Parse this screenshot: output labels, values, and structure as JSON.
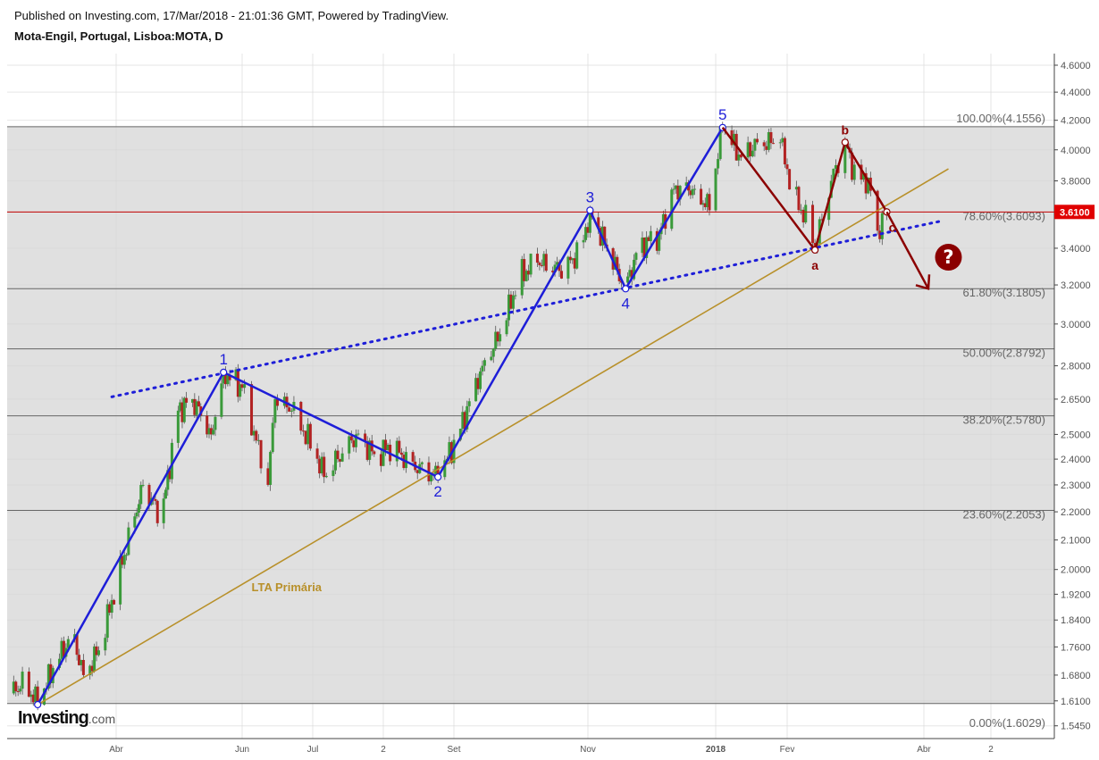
{
  "header": {
    "published": "Published on Investing.com, 17/Mar/2018 - 21:01:36 GMT, Powered by TradingView.",
    "symbol": "Mota-Engil, Portugal, Lisboa:MOTA, D"
  },
  "logo": {
    "main": "Investing",
    "suffix": ".com"
  },
  "chart_data": {
    "type": "candlestick",
    "title": "Mota-Engil, Portugal, Lisboa:MOTA, D",
    "y_scale": "log",
    "ylim": [
      1.52,
      4.7
    ],
    "y_ticks": [
      "4.6000",
      "4.4000",
      "4.2000",
      "4.0000",
      "3.8000",
      "3.4000",
      "3.2000",
      "3.0000",
      "2.8000",
      "2.6500",
      "2.5000",
      "2.4000",
      "2.3000",
      "2.2000",
      "2.1000",
      "2.0000",
      "1.9200",
      "1.8400",
      "1.7600",
      "1.6800",
      "1.6100",
      "1.5450"
    ],
    "x_ticks": [
      {
        "label": "Abr",
        "date": "2017-04-01"
      },
      {
        "label": "Jun",
        "date": "2017-06-01"
      },
      {
        "label": "Jul",
        "date": "2017-07-01"
      },
      {
        "label": "2",
        "date": "2017-08-01"
      },
      {
        "label": "Set",
        "date": "2017-09-01"
      },
      {
        "label": "Nov",
        "date": "2017-11-01"
      },
      {
        "label": "2018",
        "date": "2018-01-01"
      },
      {
        "label": "Fev",
        "date": "2018-02-01"
      },
      {
        "label": "Abr",
        "date": "2018-04-01"
      },
      {
        "label": "2",
        "date": "2018-05-01"
      }
    ],
    "last_price": {
      "value": 3.61,
      "label": "3.6100",
      "color": "#e00000"
    },
    "price_path": [
      [
        "2017-02-11",
        1.63
      ],
      [
        "2017-02-18",
        1.66
      ],
      [
        "2017-02-24",
        1.6
      ],
      [
        "2017-03-03",
        1.7
      ],
      [
        "2017-03-12",
        1.8
      ],
      [
        "2017-03-17",
        1.68
      ],
      [
        "2017-03-24",
        1.75
      ],
      [
        "2017-04-01",
        1.95
      ],
      [
        "2017-04-14",
        2.3
      ],
      [
        "2017-04-23",
        2.18
      ],
      [
        "2017-05-01",
        2.6
      ],
      [
        "2017-05-08",
        2.65
      ],
      [
        "2017-05-17",
        2.5
      ],
      [
        "2017-05-23",
        2.77
      ],
      [
        "2017-06-01",
        2.7
      ],
      [
        "2017-06-12",
        2.3
      ],
      [
        "2017-06-15",
        2.65
      ],
      [
        "2017-06-22",
        2.6
      ],
      [
        "2017-07-01",
        2.45
      ],
      [
        "2017-07-06",
        2.33
      ],
      [
        "2017-07-12",
        2.4
      ],
      [
        "2017-07-20",
        2.5
      ],
      [
        "2017-07-28",
        2.42
      ],
      [
        "2017-08-05",
        2.45
      ],
      [
        "2017-08-13",
        2.38
      ],
      [
        "2017-08-25",
        2.33
      ],
      [
        "2017-09-03",
        2.5
      ],
      [
        "2017-09-14",
        2.8
      ],
      [
        "2017-09-22",
        2.95
      ],
      [
        "2017-10-01",
        3.25
      ],
      [
        "2017-10-09",
        3.32
      ],
      [
        "2017-10-21",
        3.28
      ],
      [
        "2017-10-29",
        3.4
      ],
      [
        "2017-11-02",
        3.62
      ],
      [
        "2017-11-10",
        3.4
      ],
      [
        "2017-11-19",
        3.18
      ],
      [
        "2017-11-25",
        3.4
      ],
      [
        "2017-12-05",
        3.48
      ],
      [
        "2017-12-12",
        3.75
      ],
      [
        "2017-12-22",
        3.75
      ],
      [
        "2017-12-29",
        3.62
      ],
      [
        "2018-01-04",
        4.15
      ],
      [
        "2018-01-12",
        3.95
      ],
      [
        "2018-01-19",
        4.05
      ],
      [
        "2018-01-29",
        4.05
      ],
      [
        "2018-02-04",
        3.7
      ],
      [
        "2018-02-10",
        3.55
      ],
      [
        "2018-02-13",
        3.4
      ],
      [
        "2018-02-20",
        3.8
      ],
      [
        "2018-02-26",
        4.05
      ],
      [
        "2018-03-03",
        3.8
      ],
      [
        "2018-03-08",
        3.82
      ],
      [
        "2018-03-12",
        3.5
      ],
      [
        "2018-03-16",
        3.61
      ]
    ],
    "colors": {
      "up": "#3a9a3a",
      "down": "#b22222",
      "wave": "#1e1ed8",
      "correction": "#8b0000",
      "trendline": "#b8902a",
      "fib_band": "#e0e0e0"
    },
    "fibonacci": [
      {
        "label": "100.00%(4.1556)",
        "value": 4.1556
      },
      {
        "label": "78.60%(3.6093)",
        "value": 3.6093
      },
      {
        "label": "61.80%(3.1805)",
        "value": 3.1805
      },
      {
        "label": "50.00%(2.8792)",
        "value": 2.8792
      },
      {
        "label": "38.20%(2.5780)",
        "value": 2.578
      },
      {
        "label": "23.60%(2.2053)",
        "value": 2.2053
      },
      {
        "label": "0.00%(1.6029)",
        "value": 1.6029
      }
    ],
    "impulse_wave": [
      {
        "date": "2017-02-24",
        "price": 1.6,
        "label": ""
      },
      {
        "date": "2017-05-23",
        "price": 2.77,
        "label": "1"
      },
      {
        "date": "2017-08-25",
        "price": 2.33,
        "label": "2"
      },
      {
        "date": "2017-11-02",
        "price": 3.62,
        "label": "3"
      },
      {
        "date": "2017-11-19",
        "price": 3.18,
        "label": "4"
      },
      {
        "date": "2018-01-04",
        "price": 4.15,
        "label": "5"
      }
    ],
    "correction_wave": [
      {
        "date": "2018-01-04",
        "price": 4.15,
        "label": ""
      },
      {
        "date": "2018-02-13",
        "price": 3.39,
        "label": "a"
      },
      {
        "date": "2018-02-26",
        "price": 4.05,
        "label": "b"
      },
      {
        "date": "2018-03-16",
        "price": 3.61,
        "label": "c"
      }
    ],
    "projection_arrow": {
      "from": {
        "date": "2018-03-16",
        "price": 3.61
      },
      "to": {
        "date": "2018-04-03",
        "price": 3.18
      }
    },
    "lta_line": {
      "label": "LTA Primária",
      "from": {
        "date": "2017-02-24",
        "price": 1.6
      },
      "to": {
        "date": "2018-04-12",
        "price": 3.876
      },
      "label_at": {
        "date": "2017-06-05",
        "price": 1.93
      }
    },
    "dotted_line": {
      "from": {
        "date": "2017-03-30",
        "price": 2.66
      },
      "to": {
        "date": "2018-04-08",
        "price": 3.554
      }
    },
    "question_marker": {
      "symbol": "?",
      "date": "2018-04-12",
      "price": 3.35
    }
  }
}
